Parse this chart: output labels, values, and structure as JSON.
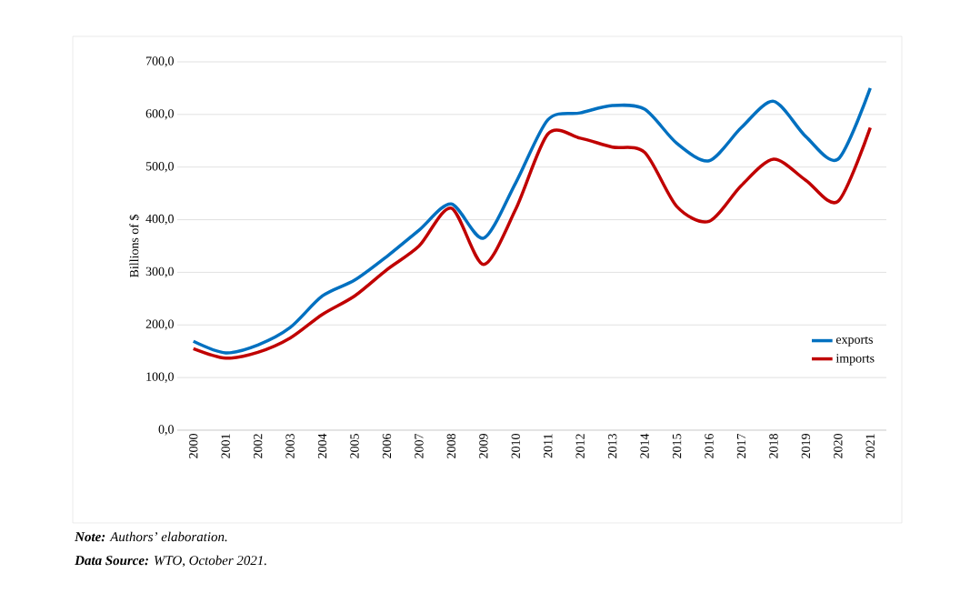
{
  "chart_data": {
    "type": "line",
    "ylabel": "Billions of $",
    "categories": [
      "2000",
      "2001",
      "2002",
      "2003",
      "2004",
      "2005",
      "2006",
      "2007",
      "2008",
      "2009",
      "2010",
      "2011",
      "2012",
      "2013",
      "2014",
      "2015",
      "2016",
      "2017",
      "2018",
      "2019",
      "2020",
      "2021"
    ],
    "series": [
      {
        "name": "exports",
        "color": "#0070c0",
        "values": [
          169,
          147,
          162,
          195,
          255,
          285,
          330,
          380,
          430,
          365,
          470,
          590,
          603,
          617,
          610,
          545,
          512,
          575,
          625,
          558,
          515,
          650
        ]
      },
      {
        "name": "imports",
        "color": "#c00000",
        "values": [
          155,
          137,
          148,
          175,
          220,
          255,
          305,
          350,
          422,
          315,
          420,
          563,
          555,
          538,
          528,
          425,
          397,
          465,
          515,
          475,
          435,
          575
        ]
      }
    ],
    "ylim": [
      0,
      700
    ],
    "yticks": [
      {
        "value": 0,
        "label": "0,0"
      },
      {
        "value": 100,
        "label": "100,0"
      },
      {
        "value": 200,
        "label": "200,0"
      },
      {
        "value": 300,
        "label": "300,0"
      },
      {
        "value": 400,
        "label": "400,0"
      },
      {
        "value": 500,
        "label": "500,0"
      },
      {
        "value": 600,
        "label": "600,0"
      },
      {
        "value": 700,
        "label": "700,0"
      }
    ],
    "grid": "y",
    "legend": "bottom right",
    "annotations": [
      "**Note:** Authors’ elaboration.",
      "**Data Source:** WTO, October 2021."
    ]
  }
}
